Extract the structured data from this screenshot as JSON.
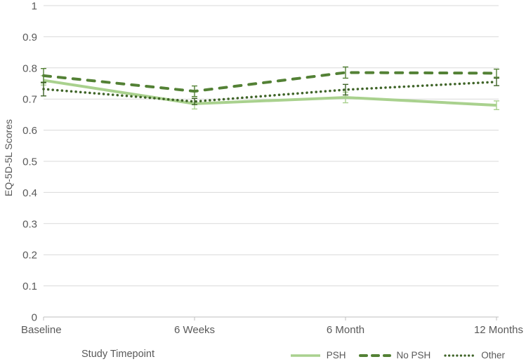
{
  "chart_data": {
    "type": "line",
    "title": "",
    "xlabel": "Study Timepoint",
    "ylabel": "EQ-5D-5L Scores",
    "categories": [
      "Baseline",
      "6 Weeks",
      "6 Month",
      "12 Months"
    ],
    "ylim": [
      0,
      1
    ],
    "ytick_step": 0.1,
    "yticks": [
      "0",
      "0.1",
      "0.2",
      "0.3",
      "0.4",
      "0.5",
      "0.6",
      "0.7",
      "0.8",
      "0.9",
      "1"
    ],
    "grid": true,
    "legend_position": "bottom-right",
    "error_bars": true,
    "series": [
      {
        "name": "PSH",
        "style": "solid",
        "color": "#a9d18e",
        "width": 4,
        "values": [
          0.76,
          0.685,
          0.705,
          0.68
        ],
        "errors": [
          0.015,
          0.017,
          0.017,
          0.014
        ]
      },
      {
        "name": "No PSH",
        "style": "dashed",
        "color": "#538135",
        "width": 4,
        "values": [
          0.775,
          0.725,
          0.785,
          0.783
        ],
        "errors": [
          0.023,
          0.017,
          0.018,
          0.013
        ]
      },
      {
        "name": "Other",
        "style": "dotted",
        "color": "#3f6428",
        "width": 3.5,
        "values": [
          0.732,
          0.692,
          0.73,
          0.755
        ],
        "errors": [
          0.022,
          0.01,
          0.017,
          0.012
        ]
      }
    ]
  },
  "colors": {
    "text": "#595959",
    "gridline": "#d9d9d9",
    "axis": "#bfbfbf",
    "background": "#ffffff"
  }
}
